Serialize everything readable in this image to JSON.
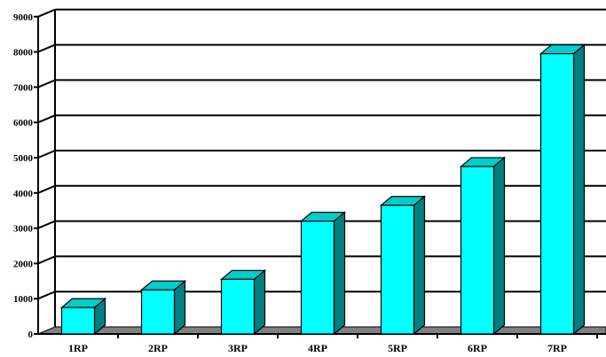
{
  "chart_data": {
    "type": "bar",
    "categories": [
      "1RP",
      "2RP",
      "3RP",
      "4RP",
      "5RP",
      "6RP",
      "7RP"
    ],
    "values": [
      750,
      1250,
      1550,
      3200,
      3650,
      4750,
      7950
    ],
    "ylim": [
      0,
      9000
    ],
    "yticks": [
      "0",
      "1000",
      "2000",
      "3000",
      "4000",
      "5000",
      "6000",
      "7000",
      "8000",
      "9000"
    ],
    "grid": true,
    "style": "3d-column",
    "colors": {
      "bar_front": "#00ffff",
      "bar_top": "#00cccc",
      "bar_side": "#008080",
      "floor": "#808080",
      "gridline": "#000000"
    }
  }
}
